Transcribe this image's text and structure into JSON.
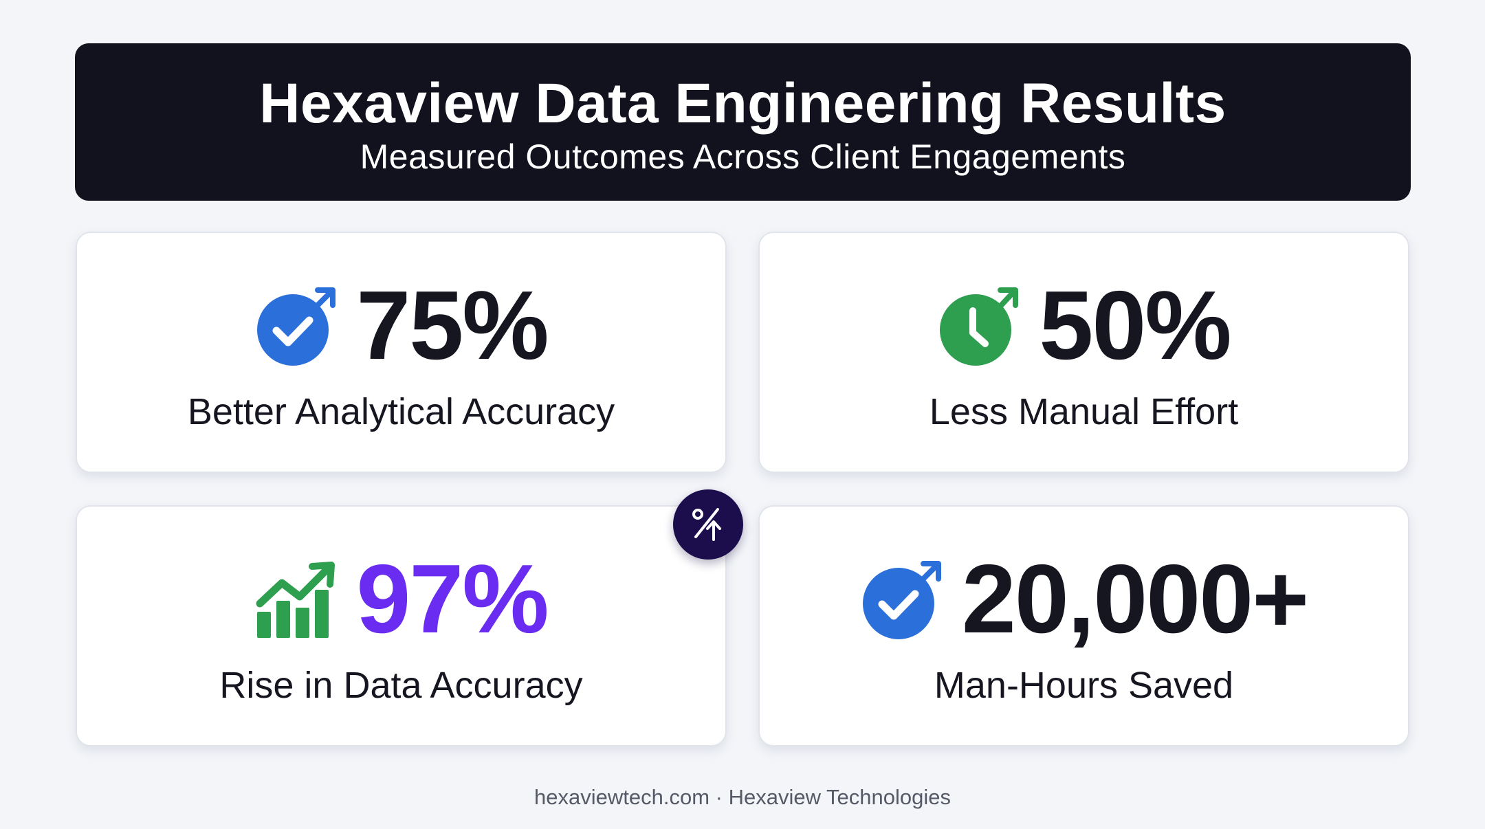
{
  "header": {
    "title": "Hexaview Data Engineering Results",
    "subtitle": "Measured Outcomes Across Client Engagements"
  },
  "metrics": [
    {
      "value": "75%",
      "label": "Better Analytical Accuracy",
      "icon": "target-check-icon",
      "color": "#2b6fdb"
    },
    {
      "value": "50%",
      "label": "Less Manual Effort",
      "icon": "clock-arrow-icon",
      "color": "#2e9e4f"
    },
    {
      "value": "97%",
      "label": "Rise in Data Accuracy",
      "icon": "growth-chart-icon",
      "color": "#6a2cf0"
    },
    {
      "value": "20,000+",
      "label": "Man-Hours Saved",
      "icon": "target-check-icon",
      "color": "#2b6fdb"
    }
  ],
  "badge": {
    "icon": "percent-up-icon"
  },
  "footer": {
    "text": "hexaviewtech.com · Hexaview Technologies"
  },
  "colors": {
    "background": "#f3f5f9",
    "header": "#11121d",
    "accent_blue": "#2b6fdb",
    "accent_green": "#2e9e4f",
    "accent_purple": "#6a2cf0",
    "badge": "#1c0e4d"
  }
}
